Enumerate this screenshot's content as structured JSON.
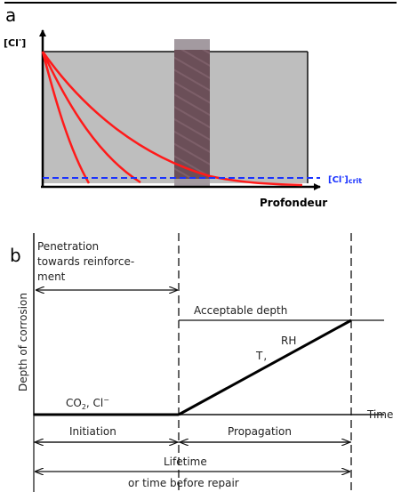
{
  "panel_a": {
    "label": "a",
    "y_axis_label_base": "[Cl",
    "y_axis_label_sup": "-",
    "y_axis_label_end": "]",
    "x_axis_label": "Profondeur",
    "crit_label_base": "[Cl",
    "crit_label_sup": "-",
    "crit_label_end": "]",
    "crit_label_sub": "crit",
    "colors": {
      "concrete": "#bebebe",
      "rebar": "#6b4f58",
      "profile_curves": "#ff1a1a",
      "critical_line": "#1a33ff"
    }
  },
  "panel_b": {
    "label": "b",
    "y_axis_label": "Depth of corrosion",
    "penetration_lines": [
      "Penetration",
      "towards reinforce-",
      "ment"
    ],
    "acceptable_depth": "Acceptable depth",
    "rh_label": "RH",
    "t_label": "T",
    "co2_base": "CO",
    "co2_sub": "2",
    "cl_base": ", Cl",
    "cl_sup": "−",
    "x_axis_label": "Time",
    "initiation": "Initiation",
    "propagation": "Propagation",
    "lifetime": "Lifetime",
    "lifetime_sub": "or time before repair"
  }
}
